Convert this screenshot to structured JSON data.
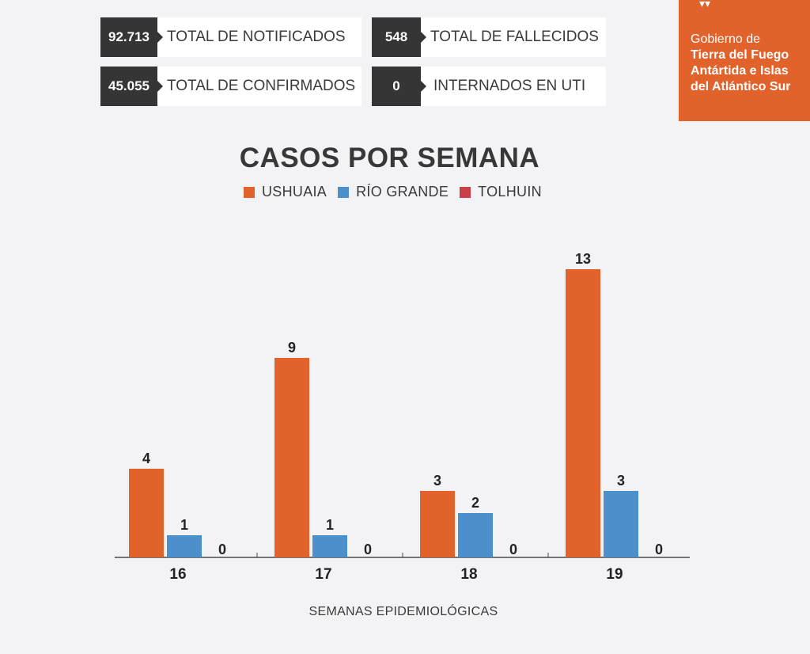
{
  "stats": [
    {
      "value": "92.713",
      "label": "TOTAL DE NOTIFICADOS"
    },
    {
      "value": "548",
      "label": "TOTAL DE FALLECIDOS"
    },
    {
      "value": "45.055",
      "label": "TOTAL DE CONFIRMADOS"
    },
    {
      "value": "0",
      "label": "INTERNADOS EN UTI"
    }
  ],
  "government": {
    "line1": "Gobierno de",
    "line2": "Tierra del Fuego",
    "line3": "Antártida e Islas",
    "line4": "del Atlántico Sur",
    "brand_color": "#e1622a"
  },
  "chart_data": {
    "type": "bar",
    "title": "CASOS POR SEMANA",
    "xlabel": "SEMANAS EPIDEMIOLÓGICAS",
    "ylabel": "",
    "categories": [
      "16",
      "17",
      "18",
      "19"
    ],
    "series": [
      {
        "name": "USHUAIA",
        "color": "#e1622a",
        "values": [
          4,
          9,
          3,
          13
        ]
      },
      {
        "name": "RÍO GRANDE",
        "color": "#4b8fcb",
        "values": [
          1,
          1,
          2,
          3
        ]
      },
      {
        "name": "TOLHUIN",
        "color": "#c9404a",
        "values": [
          0,
          0,
          0,
          0
        ]
      }
    ],
    "ylim": [
      0,
      13
    ],
    "grid": false,
    "legend": "top-center",
    "data_labels": true
  }
}
